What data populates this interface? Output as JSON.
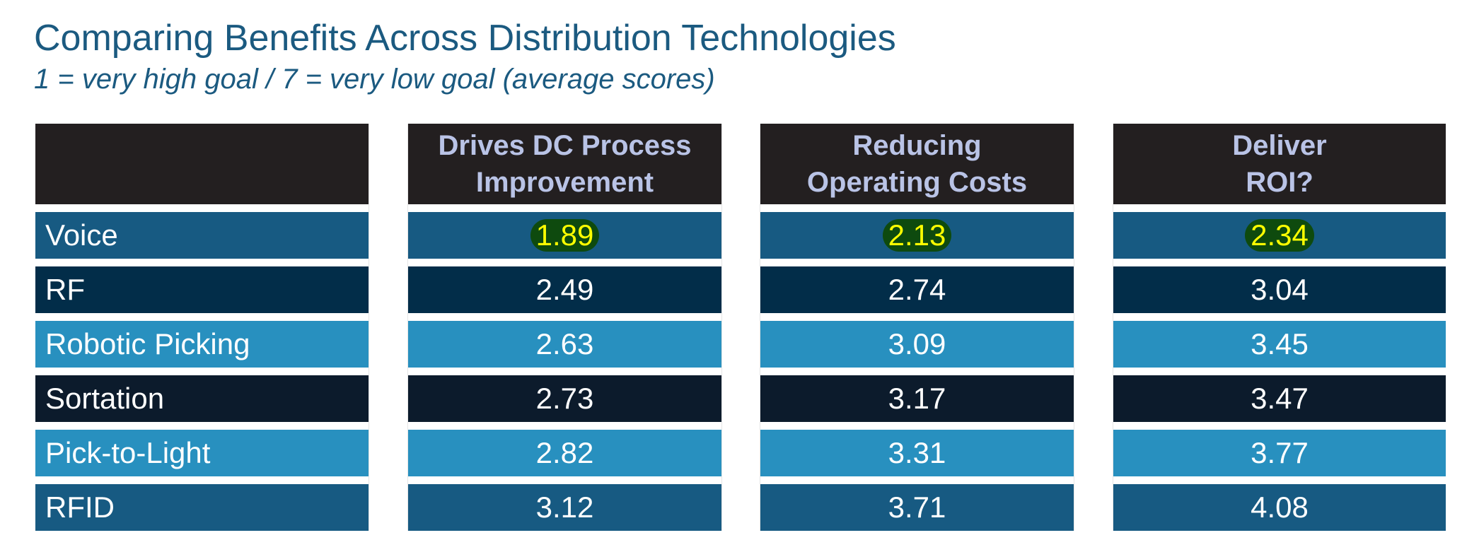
{
  "title": "Comparing Benefits Across Distribution Technologies",
  "subtitle": "1 = very high goal / 7 = very low goal (average scores)",
  "chart_data": {
    "type": "table",
    "columns": [
      {
        "line1": "Drives DC Process",
        "line2": "Improvement"
      },
      {
        "line1": "Reducing",
        "line2": "Operating Costs"
      },
      {
        "line1": "Deliver",
        "line2": "ROI?"
      }
    ],
    "rows": [
      {
        "label": "Voice",
        "values": [
          "1.89",
          "2.13",
          "2.34"
        ],
        "highlight": true,
        "color": "#175a82"
      },
      {
        "label": "RF",
        "values": [
          "2.49",
          "2.74",
          "3.04"
        ],
        "highlight": false,
        "color": "#022d49"
      },
      {
        "label": "Robotic Picking",
        "values": [
          "2.63",
          "3.09",
          "3.45"
        ],
        "highlight": false,
        "color": "#2890bf"
      },
      {
        "label": "Sortation",
        "values": [
          "2.73",
          "3.17",
          "3.47"
        ],
        "highlight": false,
        "color": "#0c1b2c"
      },
      {
        "label": "Pick-to-Light",
        "values": [
          "2.82",
          "3.31",
          "3.77"
        ],
        "highlight": false,
        "color": "#2890bf"
      },
      {
        "label": "RFID",
        "values": [
          "3.12",
          "3.71",
          "4.08"
        ],
        "highlight": false,
        "color": "#175a82"
      }
    ],
    "header_color": "#231f20",
    "header_text_color": "#b9c3e6",
    "highlight_bg": "#0e4a0e",
    "highlight_text": "#ffff00"
  }
}
